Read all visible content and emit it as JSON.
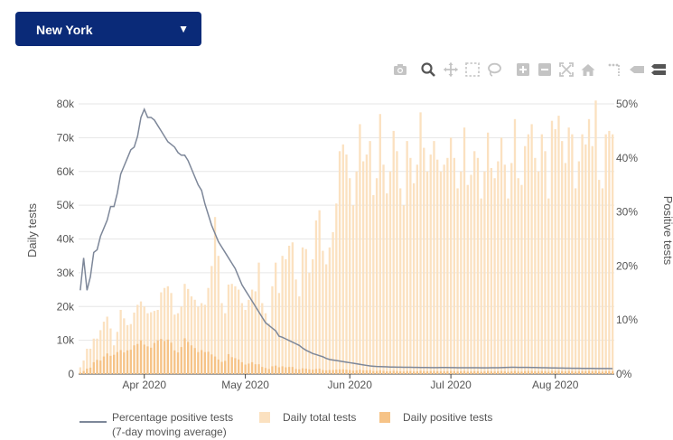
{
  "location_select": {
    "selected": "New York",
    "caret": "▼"
  },
  "toolbar": {
    "icons": [
      "camera-icon",
      "zoom-icon",
      "pan-icon",
      "box-select-icon",
      "lasso-select-icon",
      "zoom-in-icon",
      "zoom-out-icon",
      "autoscale-icon",
      "reset-axes-icon",
      "spike-lines-icon",
      "hover-closest-icon",
      "hover-compare-icon"
    ]
  },
  "colors": {
    "total_tests": "#fbe1c0",
    "positive_tests": "#f6c387",
    "positivity_line": "#7d8799",
    "grid": "#e6e6e6",
    "dropdown_bg": "#0a2a78"
  },
  "chart_data": {
    "type": "bar",
    "x_start": "2020-03-13",
    "x_ticks": [
      "Apr 2020",
      "May 2020",
      "Jun 2020",
      "Jul 2020",
      "Aug 2020"
    ],
    "x_tick_dates": [
      "2020-04-01",
      "2020-05-01",
      "2020-06-01",
      "2020-07-01",
      "2020-08-01"
    ],
    "y_left": {
      "title": "Daily tests",
      "range": [
        0,
        80000
      ],
      "ticks": [
        "0",
        "10k",
        "20k",
        "30k",
        "40k",
        "50k",
        "60k",
        "70k",
        "80k"
      ]
    },
    "y_right": {
      "title": "Positive tests",
      "range": [
        0,
        50
      ],
      "ticks": [
        "0%",
        "10%",
        "20%",
        "30%",
        "40%",
        "50%"
      ]
    },
    "grid": true,
    "legend": "bottom",
    "series": [
      {
        "name": "Daily total tests",
        "type": "bar",
        "values": [
          2000,
          4000,
          7500,
          7500,
          10500,
          10500,
          13000,
          15500,
          17000,
          13500,
          8500,
          12500,
          19000,
          16500,
          14500,
          14800,
          18200,
          20500,
          21500,
          20000,
          18000,
          18300,
          18700,
          19000,
          24200,
          25500,
          26000,
          24000,
          17600,
          18000,
          20000,
          26700,
          25200,
          23000,
          22000,
          20000,
          21000,
          20500,
          25500,
          32000,
          46500,
          35000,
          21000,
          18000,
          26500,
          26700,
          26000,
          25000,
          21000,
          19000,
          22000,
          25000,
          24500,
          33000,
          21000,
          18000,
          15000,
          26000,
          33000,
          24000,
          35000,
          34000,
          38000,
          39000,
          28000,
          23000,
          37500,
          37000,
          30000,
          34000,
          45500,
          48500,
          36500,
          32500,
          37500,
          42000,
          50500,
          66000,
          68000,
          65000,
          58000,
          50000,
          60000,
          74000,
          63000,
          65000,
          69000,
          53000,
          58000,
          77000,
          62000,
          53500,
          60000,
          72000,
          66000,
          55000,
          50000,
          69000,
          64000,
          56500,
          62000,
          77500,
          67000,
          60000,
          65000,
          69000,
          63500,
          60000,
          62000,
          64000,
          70000,
          64000,
          55000,
          60000,
          73000,
          56000,
          59000,
          66000,
          64000,
          52000,
          60000,
          71500,
          61000,
          58000,
          63000,
          70000,
          62000,
          52000,
          62500,
          75500,
          58000,
          56000,
          67500,
          71000,
          74000,
          64000,
          60000,
          71000,
          66000,
          52000,
          75000,
          72500,
          76500,
          69000,
          62500,
          73000,
          71000,
          55000,
          63000,
          71000,
          68000,
          75500,
          67500,
          81000,
          57500,
          55000,
          71000,
          72000,
          71000
        ],
        "color": "#fbe1c0"
      },
      {
        "name": "Daily positive tests",
        "type": "bar",
        "values": [
          400,
          900,
          1600,
          1900,
          3500,
          4200,
          4000,
          5200,
          6100,
          5400,
          5700,
          6500,
          7100,
          6400,
          7000,
          7200,
          8500,
          8900,
          10000,
          8700,
          8200,
          7800,
          9200,
          10000,
          10400,
          9800,
          10200,
          9300,
          7000,
          6400,
          8000,
          10600,
          9500,
          8500,
          7700,
          6500,
          7100,
          6500,
          6600,
          5800,
          5200,
          4300,
          3600,
          3900,
          5900,
          5000,
          4700,
          4300,
          3500,
          2800,
          3100,
          3500,
          2900,
          2900,
          2100,
          1800,
          1500,
          2300,
          2500,
          2000,
          2300,
          2000,
          2100,
          2100,
          1500,
          1400,
          1700,
          1600,
          1400,
          1300,
          1500,
          1600,
          1200,
          1100,
          1200,
          1200,
          1300,
          1400,
          1400,
          1300,
          1200,
          1000,
          1100,
          1300,
          1100,
          1100,
          1200,
          900,
          900,
          1100,
          950,
          800,
          850,
          950,
          900,
          800,
          750,
          900,
          880,
          750,
          800,
          950,
          850,
          800,
          850,
          900,
          820,
          780,
          800,
          820,
          880,
          820,
          750,
          800,
          900,
          720,
          760,
          830,
          800,
          680,
          780,
          880,
          780,
          740,
          800,
          870,
          780,
          680,
          790,
          900,
          740,
          720,
          840,
          880,
          900,
          800,
          760,
          870,
          820,
          680,
          900,
          880,
          920,
          840,
          780,
          880,
          860,
          700,
          780,
          860,
          820,
          900,
          820,
          960,
          720,
          700,
          860,
          860,
          850
        ],
        "color": "#f6c387"
      },
      {
        "name": "Percentage positive tests (7-day moving average)",
        "type": "line",
        "axis": "right",
        "values": [
          15.5,
          21.5,
          15.5,
          18,
          22.5,
          23,
          25.5,
          27,
          28.5,
          31,
          31,
          33.5,
          37,
          38.5,
          40,
          41.5,
          42,
          44,
          47.5,
          49,
          47.5,
          47.5,
          47,
          46,
          45,
          44,
          43,
          42.5,
          42,
          41,
          40.5,
          40.5,
          39.5,
          38,
          36.5,
          35,
          34,
          31.5,
          29.5,
          27.5,
          26,
          24.5,
          23.5,
          22.5,
          21.5,
          20.5,
          19.5,
          18,
          16.5,
          15.5,
          14.5,
          13.5,
          12.5,
          11.5,
          10.5,
          9.5,
          9,
          8.5,
          8,
          7,
          6.8,
          6.5,
          6.2,
          5.9,
          5.6,
          5.3,
          4.8,
          4.4,
          4.1,
          3.8,
          3.6,
          3.4,
          3.2,
          2.9,
          2.7,
          2.6,
          2.5,
          2.4,
          2.3,
          2.2,
          2.1,
          2,
          1.9,
          1.8,
          1.7,
          1.6,
          1.5,
          1.45,
          1.4,
          1.38,
          1.35,
          1.33,
          1.3,
          1.3,
          1.28,
          1.27,
          1.26,
          1.25,
          1.25,
          1.24,
          1.23,
          1.22,
          1.22,
          1.21,
          1.2,
          1.2,
          1.2,
          1.21,
          1.22,
          1.22,
          1.2,
          1.19,
          1.18,
          1.18,
          1.17,
          1.17,
          1.16,
          1.16,
          1.16,
          1.15,
          1.15,
          1.15,
          1.16,
          1.17,
          1.18,
          1.2,
          1.22,
          1.24,
          1.25,
          1.25,
          1.24,
          1.24,
          1.23,
          1.23,
          1.22,
          1.21,
          1.2,
          1.18,
          1.16,
          1.14,
          1.13,
          1.12,
          1.11,
          1.1,
          1.09,
          1.08,
          1.07,
          1.06,
          1.06,
          1.05,
          1.05,
          1.04,
          1.04,
          1.03,
          1.03,
          1.02,
          1.02,
          1.02,
          1.01
        ],
        "color": "#7d8799"
      }
    ],
    "legend_entries": [
      {
        "label": "Percentage positive tests",
        "label2": "(7-day moving average)",
        "kind": "line"
      },
      {
        "label": "Daily total tests",
        "kind": "bar_total"
      },
      {
        "label": "Daily positive tests",
        "kind": "bar_positive"
      }
    ]
  }
}
